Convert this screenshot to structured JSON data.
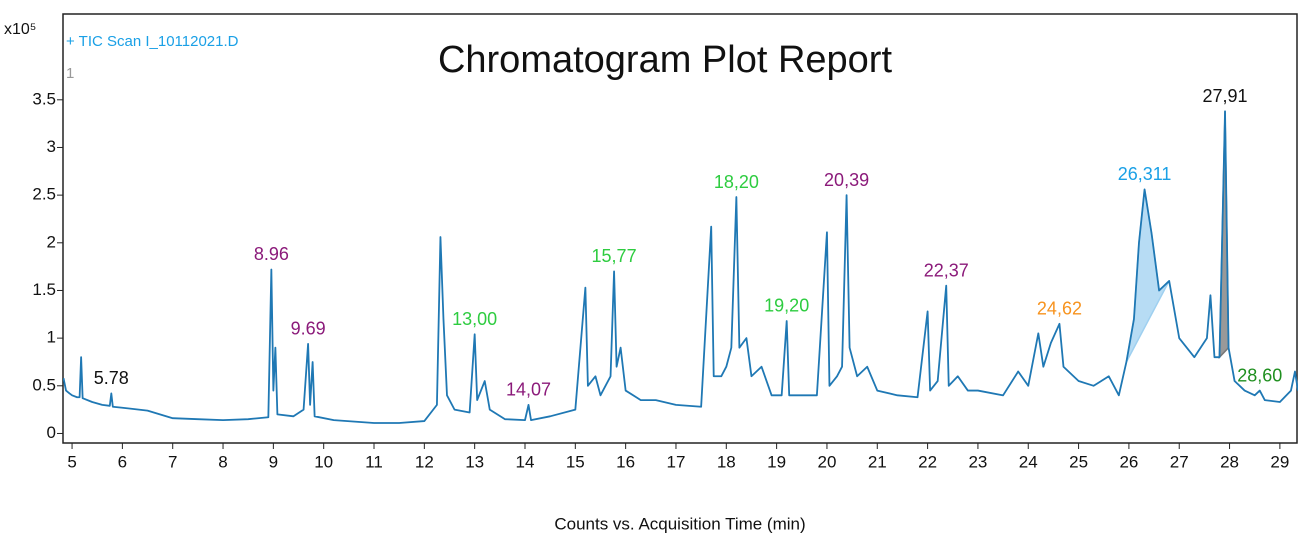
{
  "chart_data": {
    "type": "line",
    "title": "Chromatogram Plot Report",
    "xlabel": "Counts vs. Acquisition Time (min)",
    "ylabel": "x10⁵",
    "panel_label": "1",
    "xlim": [
      4.82,
      29.36
    ],
    "ylim": [
      -0.1,
      4.4
    ],
    "xticks": [
      5,
      6,
      7,
      8,
      9,
      10,
      11,
      12,
      13,
      14,
      15,
      16,
      17,
      18,
      19,
      20,
      21,
      22,
      23,
      24,
      25,
      26,
      27,
      28,
      29
    ],
    "yticks": [
      0,
      0.5,
      1,
      1.5,
      2,
      2.5,
      3,
      3.5
    ],
    "x": [
      4.83,
      4.88,
      4.95,
      5.0,
      5.1,
      5.15,
      5.18,
      5.21,
      5.4,
      5.6,
      5.75,
      5.78,
      5.81,
      6.0,
      6.5,
      7.0,
      7.5,
      8.0,
      8.5,
      8.9,
      8.96,
      9.0,
      9.04,
      9.08,
      9.4,
      9.6,
      9.69,
      9.73,
      9.78,
      9.82,
      10.2,
      11.0,
      11.5,
      12.0,
      12.25,
      12.32,
      12.38,
      12.45,
      12.6,
      12.9,
      13.0,
      13.05,
      13.2,
      13.3,
      13.6,
      14.0,
      14.07,
      14.12,
      14.5,
      15.0,
      15.2,
      15.25,
      15.4,
      15.5,
      15.7,
      15.77,
      15.82,
      15.9,
      16.0,
      16.3,
      16.6,
      17.0,
      17.5,
      17.7,
      17.75,
      17.9,
      18.0,
      18.1,
      18.2,
      18.26,
      18.4,
      18.5,
      18.7,
      18.9,
      19.1,
      19.2,
      19.25,
      19.5,
      19.8,
      20.0,
      20.05,
      20.2,
      20.3,
      20.39,
      20.45,
      20.6,
      20.8,
      21.0,
      21.4,
      21.8,
      22.0,
      22.05,
      22.2,
      22.37,
      22.42,
      22.6,
      22.8,
      23.0,
      23.5,
      23.8,
      24.0,
      24.2,
      24.3,
      24.45,
      24.62,
      24.7,
      25.0,
      25.3,
      25.6,
      25.8,
      25.95,
      26.1,
      26.2,
      26.311,
      26.45,
      26.6,
      26.8,
      27.0,
      27.3,
      27.55,
      27.62,
      27.7,
      27.8,
      27.91,
      27.98,
      28.1,
      28.3,
      28.5,
      28.6,
      28.7,
      29.0,
      29.22,
      29.3,
      29.36
    ],
    "series": [
      {
        "name": "+ TIC Scan I_10112021.D",
        "color": "#1f78b4",
        "values": [
          0.58,
          0.45,
          0.42,
          0.4,
          0.38,
          0.38,
          0.8,
          0.37,
          0.33,
          0.3,
          0.29,
          0.42,
          0.28,
          0.27,
          0.24,
          0.16,
          0.15,
          0.14,
          0.15,
          0.17,
          1.72,
          0.45,
          0.9,
          0.2,
          0.18,
          0.25,
          0.94,
          0.3,
          0.75,
          0.18,
          0.14,
          0.11,
          0.11,
          0.13,
          0.3,
          2.06,
          1.2,
          0.4,
          0.25,
          0.22,
          1.04,
          0.35,
          0.55,
          0.25,
          0.15,
          0.14,
          0.3,
          0.14,
          0.18,
          0.25,
          1.53,
          0.5,
          0.6,
          0.4,
          0.6,
          1.7,
          0.7,
          0.9,
          0.45,
          0.35,
          0.35,
          0.3,
          0.28,
          2.17,
          0.6,
          0.6,
          0.7,
          0.9,
          2.48,
          0.9,
          1.0,
          0.6,
          0.7,
          0.4,
          0.4,
          1.18,
          0.4,
          0.4,
          0.4,
          2.11,
          0.5,
          0.6,
          0.7,
          2.5,
          0.9,
          0.6,
          0.7,
          0.45,
          0.4,
          0.38,
          1.28,
          0.45,
          0.55,
          1.55,
          0.5,
          0.6,
          0.45,
          0.45,
          0.4,
          0.65,
          0.5,
          1.05,
          0.7,
          0.95,
          1.15,
          0.7,
          0.55,
          0.5,
          0.6,
          0.4,
          0.75,
          1.2,
          2.0,
          2.56,
          2.1,
          1.5,
          1.6,
          1.0,
          0.8,
          1.0,
          1.45,
          0.8,
          0.8,
          3.38,
          0.9,
          0.55,
          0.45,
          0.4,
          0.45,
          0.35,
          0.33,
          0.45,
          0.65,
          0.45
        ]
      }
    ],
    "integrated_regions": [
      {
        "start": 25.95,
        "end": 26.8,
        "color": "#9fd0f0"
      },
      {
        "start": 27.8,
        "end": 27.98,
        "color": "#777777"
      }
    ],
    "annotations": [
      {
        "text": "5.78",
        "x": 5.78,
        "y": 0.42,
        "color": "#111111"
      },
      {
        "text": "8.96",
        "x": 8.96,
        "y": 1.72,
        "color": "#8b1a7a"
      },
      {
        "text": "9.69",
        "x": 9.69,
        "y": 0.94,
        "color": "#8b1a7a"
      },
      {
        "text": "13,00",
        "x": 13.0,
        "y": 1.04,
        "color": "#2ecc40"
      },
      {
        "text": "14,07",
        "x": 14.07,
        "y": 0.3,
        "color": "#8b1a7a"
      },
      {
        "text": "15,77",
        "x": 15.77,
        "y": 1.7,
        "color": "#2ecc40"
      },
      {
        "text": "18,20",
        "x": 18.2,
        "y": 2.48,
        "color": "#2ecc40"
      },
      {
        "text": "19,20",
        "x": 19.2,
        "y": 1.18,
        "color": "#2ecc40"
      },
      {
        "text": "20,39",
        "x": 20.39,
        "y": 2.5,
        "color": "#8b1a7a"
      },
      {
        "text": "22,37",
        "x": 22.37,
        "y": 1.55,
        "color": "#8b1a7a"
      },
      {
        "text": "24,62",
        "x": 24.62,
        "y": 1.15,
        "color": "#f7931e"
      },
      {
        "text": "26,311",
        "x": 26.311,
        "y": 2.56,
        "color": "#1aa0e6"
      },
      {
        "text": "27,91",
        "x": 27.91,
        "y": 3.38,
        "color": "#111111"
      },
      {
        "text": "28,60",
        "x": 28.6,
        "y": 0.45,
        "color": "#1f8f1f"
      }
    ]
  }
}
